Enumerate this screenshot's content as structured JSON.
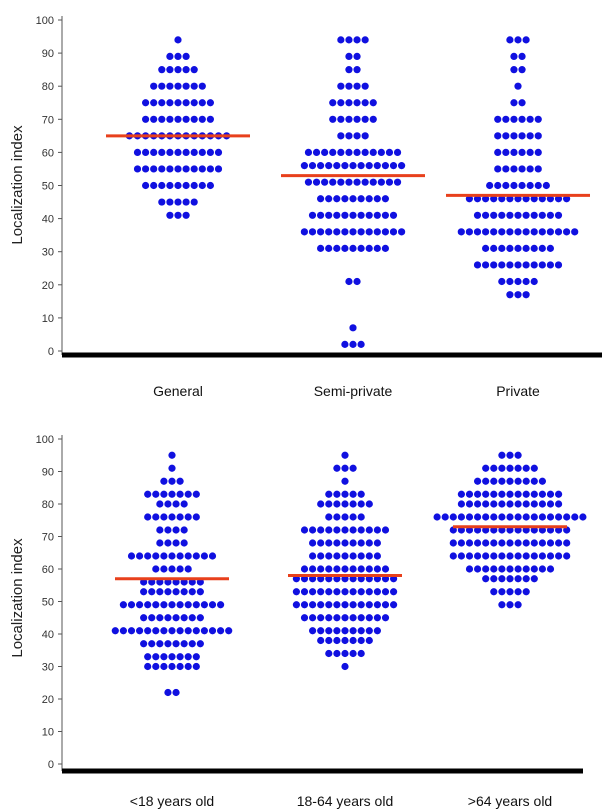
{
  "colors": {
    "points": "#1010e0",
    "median": "#e8401c",
    "axis": "#000000",
    "tick": "#555555"
  },
  "chart_data": [
    {
      "type": "scatter",
      "subtype": "dot-plot",
      "ylabel": "Localization index",
      "ylim": [
        0,
        100
      ],
      "yticks": [
        0,
        10,
        20,
        30,
        40,
        50,
        60,
        70,
        80,
        90,
        100
      ],
      "categories": [
        "General",
        "Semi-private",
        "Private"
      ],
      "medians": [
        65,
        53,
        47
      ],
      "groups": [
        {
          "name": "General",
          "bins": [
            [
              94,
              1
            ],
            [
              89,
              3
            ],
            [
              85,
              5
            ],
            [
              80,
              7
            ],
            [
              75,
              9
            ],
            [
              70,
              9
            ],
            [
              65,
              13
            ],
            [
              60,
              11
            ],
            [
              55,
              11
            ],
            [
              50,
              9
            ],
            [
              45,
              5
            ],
            [
              41,
              3
            ]
          ]
        },
        {
          "name": "Semi-private",
          "bins": [
            [
              94,
              4
            ],
            [
              89,
              2
            ],
            [
              85,
              2
            ],
            [
              80,
              4
            ],
            [
              75,
              6
            ],
            [
              70,
              6
            ],
            [
              65,
              4
            ],
            [
              60,
              12
            ],
            [
              56,
              13
            ],
            [
              51,
              12
            ],
            [
              46,
              9
            ],
            [
              41,
              11
            ],
            [
              36,
              13
            ],
            [
              31,
              9
            ],
            [
              21,
              2
            ],
            [
              7,
              1
            ],
            [
              2,
              3
            ]
          ]
        },
        {
          "name": "Private",
          "bins": [
            [
              94,
              3
            ],
            [
              89,
              2
            ],
            [
              85,
              2
            ],
            [
              80,
              1
            ],
            [
              75,
              2
            ],
            [
              70,
              6
            ],
            [
              65,
              6
            ],
            [
              60,
              6
            ],
            [
              55,
              6
            ],
            [
              50,
              8
            ],
            [
              46,
              13
            ],
            [
              41,
              11
            ],
            [
              36,
              15
            ],
            [
              31,
              9
            ],
            [
              26,
              11
            ],
            [
              21,
              5
            ],
            [
              17,
              3
            ]
          ]
        }
      ]
    },
    {
      "type": "scatter",
      "subtype": "dot-plot",
      "ylabel": "Localization index",
      "ylim": [
        0,
        100
      ],
      "yticks": [
        0,
        10,
        20,
        30,
        40,
        50,
        60,
        70,
        80,
        90,
        100
      ],
      "categories": [
        "<18 years old",
        "18-64 years old",
        ">64 years old"
      ],
      "medians": [
        57,
        58,
        73
      ],
      "groups": [
        {
          "name": "<18 years old",
          "bins": [
            [
              95,
              1
            ],
            [
              91,
              1
            ],
            [
              87,
              3
            ],
            [
              83,
              7
            ],
            [
              80,
              4
            ],
            [
              76,
              7
            ],
            [
              72,
              4
            ],
            [
              68,
              4
            ],
            [
              64,
              11
            ],
            [
              60,
              5
            ],
            [
              56,
              8
            ],
            [
              53,
              8
            ],
            [
              49,
              13
            ],
            [
              45,
              8
            ],
            [
              41,
              15
            ],
            [
              37,
              8
            ],
            [
              33,
              7
            ],
            [
              30,
              7
            ],
            [
              22,
              2
            ]
          ]
        },
        {
          "name": "18-64 years old",
          "bins": [
            [
              95,
              1
            ],
            [
              91,
              3
            ],
            [
              87,
              1
            ],
            [
              83,
              5
            ],
            [
              80,
              7
            ],
            [
              76,
              5
            ],
            [
              72,
              11
            ],
            [
              68,
              9
            ],
            [
              64,
              9
            ],
            [
              60,
              11
            ],
            [
              57,
              13
            ],
            [
              53,
              13
            ],
            [
              49,
              13
            ],
            [
              45,
              11
            ],
            [
              41,
              9
            ],
            [
              38,
              7
            ],
            [
              34,
              5
            ],
            [
              30,
              1
            ]
          ]
        },
        {
          "name": ">64 years old",
          "bins": [
            [
              95,
              3
            ],
            [
              91,
              7
            ],
            [
              87,
              9
            ],
            [
              83,
              13
            ],
            [
              80,
              13
            ],
            [
              76,
              19
            ],
            [
              72,
              15
            ],
            [
              68,
              15
            ],
            [
              64,
              15
            ],
            [
              60,
              11
            ],
            [
              57,
              7
            ],
            [
              53,
              5
            ],
            [
              49,
              3
            ]
          ]
        }
      ]
    }
  ]
}
